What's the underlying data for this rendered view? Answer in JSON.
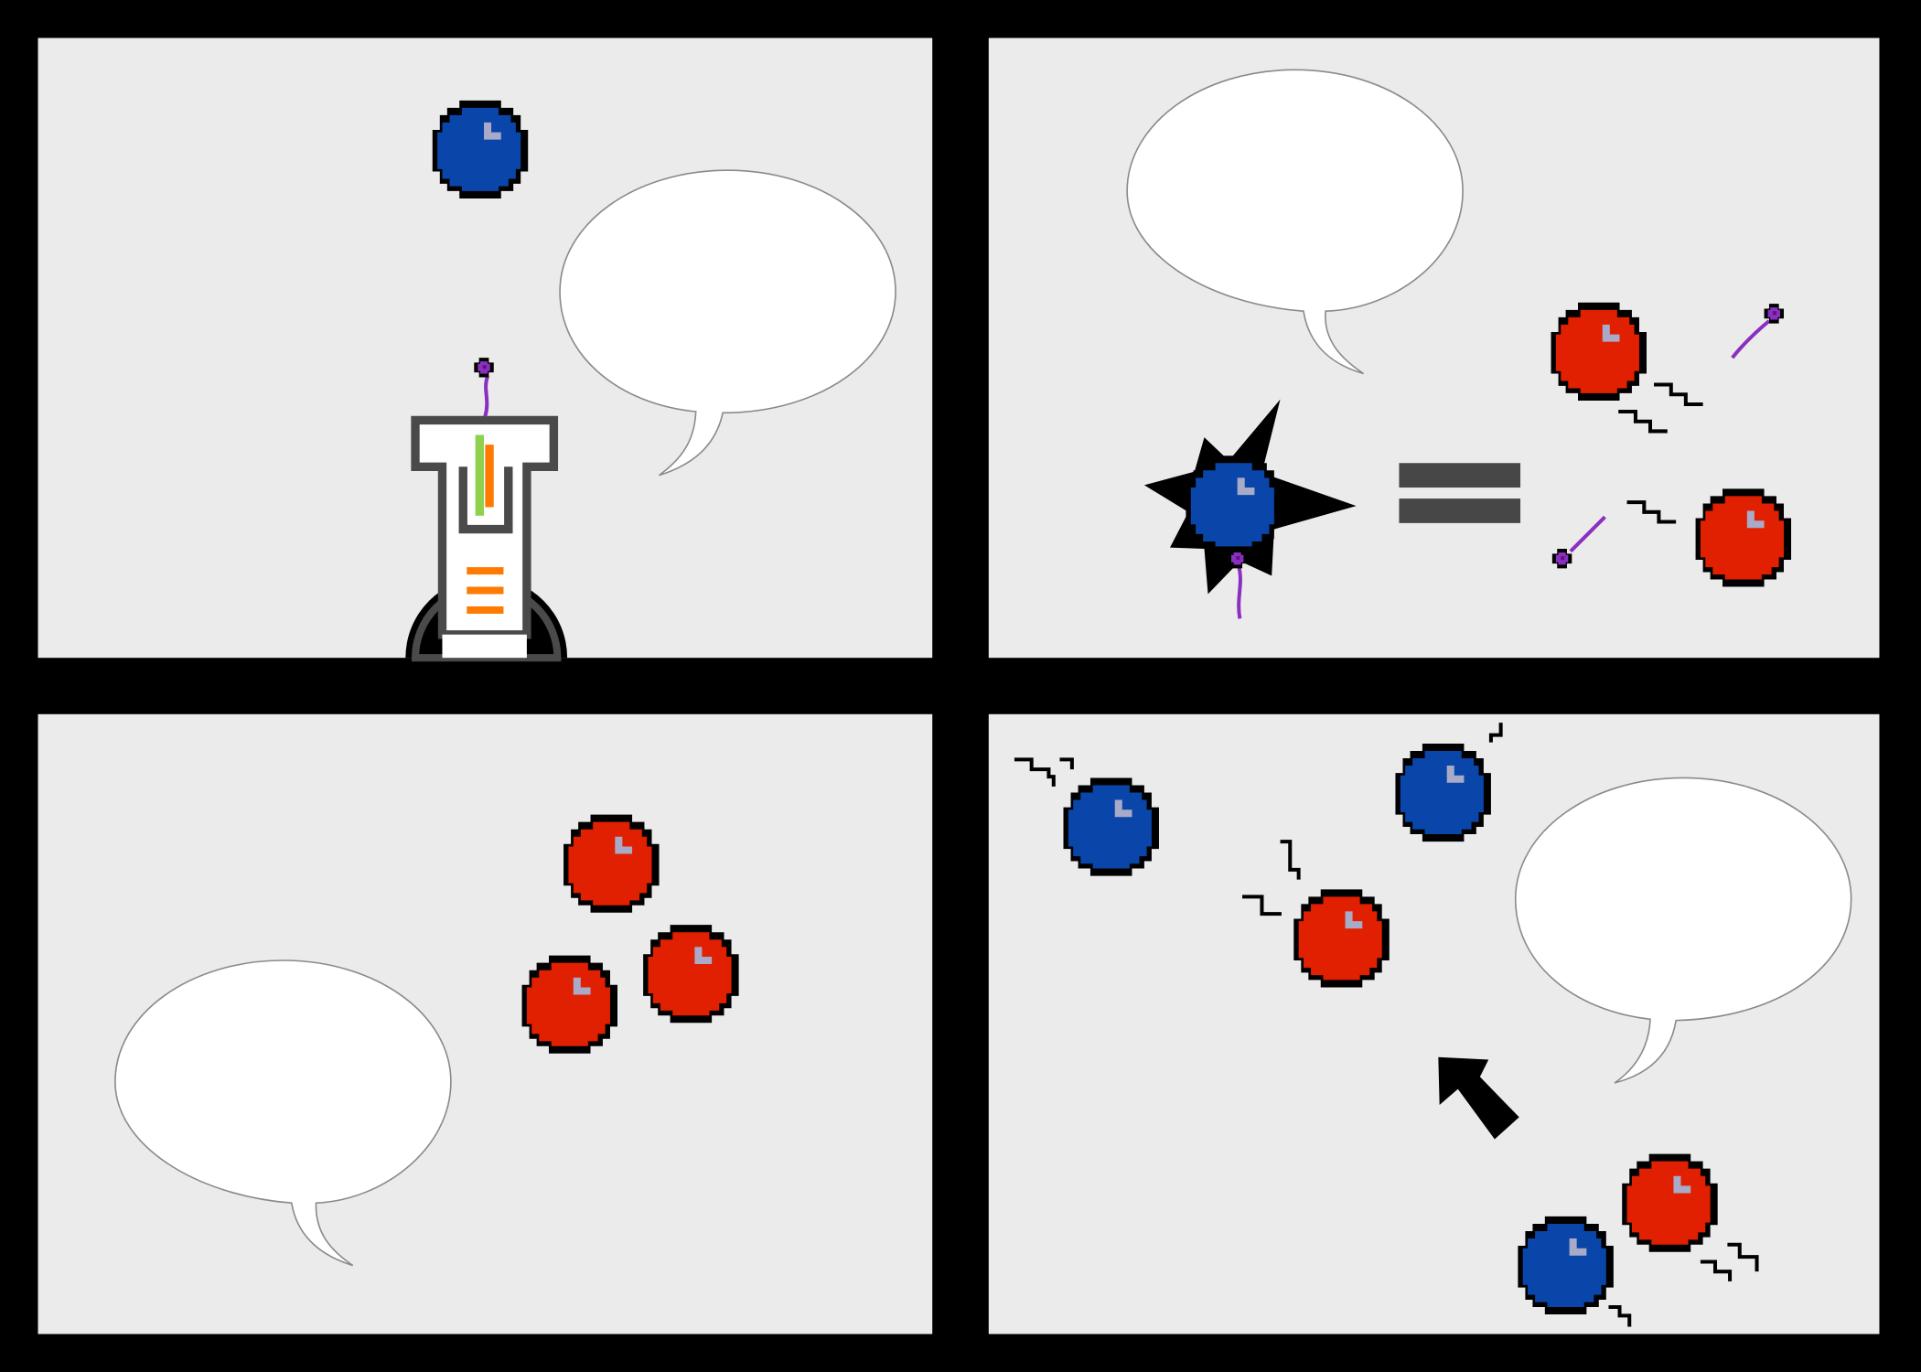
{
  "page": {
    "panel_count": 4,
    "speech_bubble_texts": [
      "",
      "",
      "",
      ""
    ]
  },
  "colors": {
    "gutter": "#000000",
    "panel_bg": "#ebebeb",
    "bubble_fill": "#ffffff",
    "bubble_stroke": "#8a8a8a",
    "blue_ball": "#0a46aa",
    "red_ball": "#e02000",
    "ball_highlight": "#a8aac8",
    "ball_outline": "#000000",
    "particle": "#8a2fbf",
    "equals_sign": "#474747",
    "device_outline": "#4a4a4a",
    "device_fill": "#ffffff",
    "device_green": "#8fd14f",
    "device_orange": "#ff7a00",
    "arrow": "#000000"
  },
  "icons": {
    "blue_ball": "blue-ball-icon",
    "red_ball": "red-ball-icon",
    "particle": "purple-particle-icon",
    "burst": "impact-burst-icon",
    "equals": "equals-sign-icon",
    "arrow": "direction-arrow-icon",
    "motion": "motion-lines-icon"
  }
}
